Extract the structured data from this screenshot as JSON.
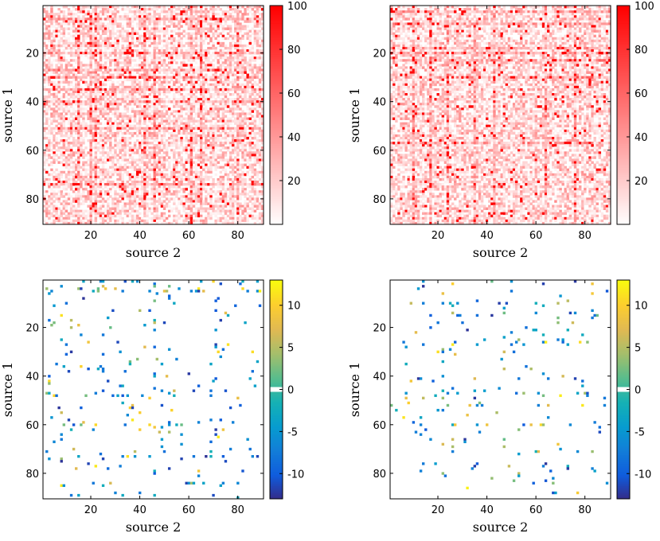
{
  "figure": {
    "description_free": true
  },
  "chart_data": [
    {
      "id": "top-left",
      "type": "heatmap",
      "xlabel": "source 2",
      "ylabel": "source 1",
      "x_ticks": [
        20,
        40,
        60,
        80
      ],
      "y_ticks": [
        20,
        40,
        60,
        80
      ],
      "xlim": [
        0.5,
        90.5
      ],
      "ylim": [
        0.5,
        90.5
      ],
      "colorbar": {
        "ticks": [
          20,
          40,
          60,
          80,
          100
        ],
        "tick_labels": [
          "20",
          "40",
          "60",
          "80",
          "100"
        ],
        "range": [
          0,
          100
        ],
        "colormap": "white-red"
      },
      "grid_size": 90,
      "seed": 17
    },
    {
      "id": "top-right",
      "type": "heatmap",
      "xlabel": "source 2",
      "ylabel": "source 1",
      "x_ticks": [
        20,
        40,
        60,
        80
      ],
      "y_ticks": [
        20,
        40,
        60,
        80
      ],
      "xlim": [
        0.5,
        90.5
      ],
      "ylim": [
        0.5,
        90.5
      ],
      "colorbar": {
        "ticks": [
          20,
          40,
          60,
          80,
          100
        ],
        "tick_labels": [
          "20",
          "40",
          "60",
          "80",
          "100"
        ],
        "range": [
          0,
          100
        ],
        "colormap": "white-red"
      },
      "grid_size": 90,
      "seed": 53
    },
    {
      "id": "bottom-left",
      "type": "heatmap",
      "xlabel": "source 2",
      "ylabel": "source 1",
      "x_ticks": [
        20,
        40,
        60,
        80
      ],
      "y_ticks": [
        20,
        40,
        60,
        80
      ],
      "xlim": [
        0.5,
        90.5
      ],
      "ylim": [
        0.5,
        90.5
      ],
      "colorbar": {
        "ticks": [
          10,
          5,
          0,
          -5,
          -10
        ],
        "tick_labels": [
          "10",
          "5",
          "0",
          "-5",
          "-10"
        ],
        "range": [
          -13,
          13
        ],
        "colormap": "parula-diverging"
      },
      "grid_size": 90,
      "seed": 91
    },
    {
      "id": "bottom-right",
      "type": "heatmap",
      "xlabel": "source 2",
      "ylabel": "source 1",
      "x_ticks": [
        20,
        40,
        60,
        80
      ],
      "y_ticks": [
        20,
        40,
        60,
        80
      ],
      "xlim": [
        0.5,
        90.5
      ],
      "ylim": [
        0.5,
        90.5
      ],
      "colorbar": {
        "ticks": [
          10,
          5,
          0,
          -5,
          -10
        ],
        "tick_labels": [
          "10",
          "5",
          "0",
          "-5",
          "-10"
        ],
        "range": [
          -13,
          13
        ],
        "colormap": "parula-diverging"
      },
      "grid_size": 90,
      "seed": 131
    }
  ],
  "colors": {
    "high_red": "#e00000",
    "axis": "#000000",
    "background": "#ffffff"
  }
}
